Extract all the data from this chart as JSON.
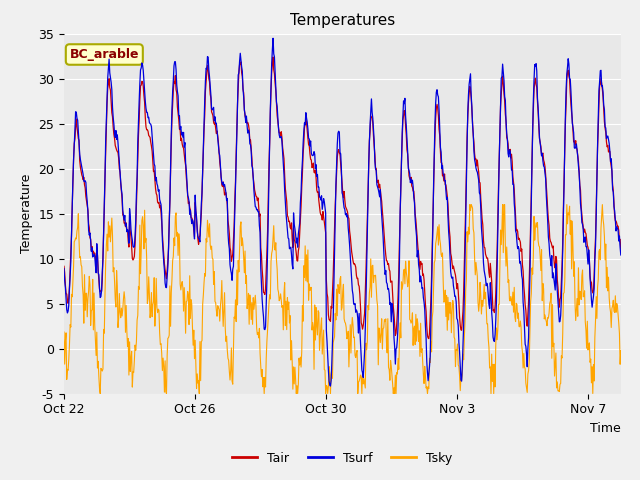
{
  "title": "Temperatures",
  "xlabel": "Time",
  "ylabel": "Temperature",
  "ylim": [
    -5,
    35
  ],
  "yticks": [
    -5,
    0,
    5,
    10,
    15,
    20,
    25,
    30,
    35
  ],
  "xtick_labels": [
    "Oct 22",
    "Oct 26",
    "Oct 30",
    "Nov 3",
    "Nov 7"
  ],
  "xtick_pos": [
    0,
    4,
    8,
    12,
    16
  ],
  "color_tair": "#cc0000",
  "color_tsurf": "#0000dd",
  "color_tsky": "#FFA500",
  "legend_label_tair": "Tair",
  "legend_label_tsurf": "Tsurf",
  "legend_label_tsky": "Tsky",
  "annotation_text": "BC_arable",
  "annotation_bg": "#ffffcc",
  "annotation_border": "#aaaa00",
  "annotation_text_color": "#8b0000",
  "fig_bg": "#f0f0f0",
  "plot_bg": "#e8e8e8",
  "n_days": 17,
  "pts_per_day": 48
}
